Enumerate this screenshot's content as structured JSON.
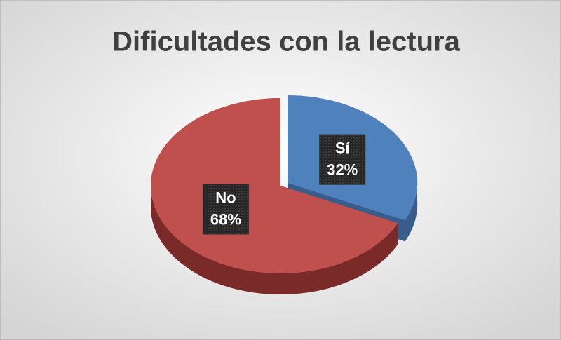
{
  "chart_data": {
    "type": "pie",
    "title": "Dificultades con la lectura",
    "categories": [
      "Sí",
      "No"
    ],
    "values": [
      32,
      68
    ],
    "value_labels": [
      "32%",
      "68%"
    ],
    "colors": [
      "#4f81bd",
      "#c0504d"
    ],
    "side_colors": [
      "#385d8a",
      "#7a2b29"
    ]
  }
}
